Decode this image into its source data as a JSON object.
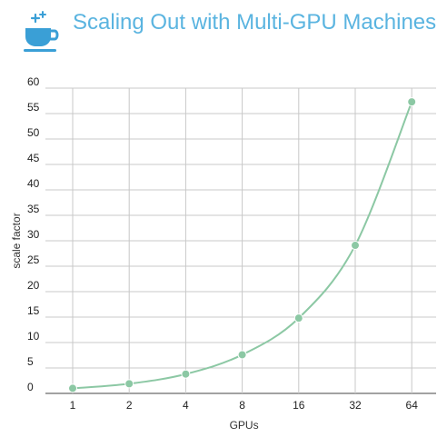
{
  "header": {
    "title": "Scaling Out with Multi-GPU Machines",
    "logo_icon": "coffee-cup-icon",
    "title_color": "#5ab4e0"
  },
  "chart_data": {
    "type": "line",
    "title": "Scaling Out with Multi-GPU Machines",
    "xlabel": "GPUs",
    "ylabel": "scale factor",
    "x_scale": "categorical",
    "categories": [
      "1",
      "2",
      "4",
      "8",
      "16",
      "32",
      "64"
    ],
    "series": [
      {
        "values": [
          1,
          1.9,
          3.8,
          7.6,
          14.8,
          29.1,
          57.3
        ],
        "color": "#8cc8a4",
        "smooth": true,
        "markers": true
      }
    ],
    "ylim": [
      0,
      60
    ],
    "yticks": [
      0,
      5,
      10,
      15,
      20,
      25,
      30,
      35,
      40,
      45,
      50,
      55,
      60
    ],
    "grid": true,
    "legend": "none"
  }
}
